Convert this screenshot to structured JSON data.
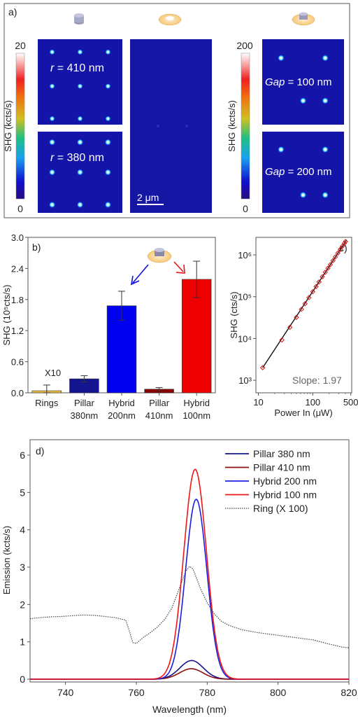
{
  "panel_a": {
    "label": "a)",
    "left_colorbar": {
      "max": "20",
      "min": "0",
      "label": "SHG (kcts/s)"
    },
    "right_colorbar": {
      "max": "200",
      "min": "0",
      "label": "SHG (kcts/s)"
    },
    "maps": [
      {
        "var": "r",
        "text": " = 410 nm",
        "spots": [
          [
            0.17,
            0.15
          ],
          [
            0.5,
            0.15
          ],
          [
            0.83,
            0.15
          ],
          [
            0.17,
            0.55
          ],
          [
            0.5,
            0.55
          ],
          [
            0.83,
            0.55
          ],
          [
            0.17,
            0.93
          ],
          [
            0.5,
            0.93
          ],
          [
            0.83,
            0.93
          ]
        ],
        "intensity": 0.45
      },
      {
        "var": "r",
        "text": " = 380 nm",
        "spots": [
          [
            0.17,
            0.13
          ],
          [
            0.5,
            0.13
          ],
          [
            0.83,
            0.13
          ],
          [
            0.17,
            0.5
          ],
          [
            0.5,
            0.5
          ],
          [
            0.83,
            0.5
          ],
          [
            0.17,
            0.9
          ],
          [
            0.5,
            0.9
          ],
          [
            0.83,
            0.9
          ]
        ],
        "intensity": 0.7
      },
      {
        "var": "Gap",
        "text": " = 100 nm",
        "spots": [
          [
            0.23,
            0.22
          ],
          [
            0.77,
            0.22
          ],
          [
            0.5,
            0.72
          ],
          [
            0.77,
            0.72
          ]
        ],
        "intensity": 0.75
      },
      {
        "var": "Gap",
        "text": " = 200 nm",
        "spots": [
          [
            0.23,
            0.22
          ],
          [
            0.77,
            0.22
          ],
          [
            0.5,
            0.78
          ],
          [
            0.77,
            0.78
          ]
        ],
        "intensity": 0.75
      }
    ],
    "scale_bar": "2 μm"
  },
  "chart_data": [
    {
      "type": "bar",
      "panel": "b)",
      "categories": [
        [
          "Rings"
        ],
        [
          "Pillar",
          "380nm"
        ],
        [
          "Hybrid",
          "200nm"
        ],
        [
          "Pillar",
          "410nm"
        ],
        [
          "Hybrid",
          "100nm"
        ]
      ],
      "values": [
        0.04,
        0.27,
        1.68,
        0.07,
        2.19
      ],
      "errors": [
        0.11,
        0.06,
        0.28,
        0.03,
        0.35
      ],
      "colors": [
        "#f0c040",
        "#141490",
        "#0000ee",
        "#8b0000",
        "#ee0000"
      ],
      "ylabel": "SHG (10⁵cts/s)",
      "yticks": [
        "0.0",
        "0.6",
        "1.2",
        "1.8",
        "2.4",
        "3.0"
      ],
      "ylim": [
        0,
        3.0
      ],
      "annotation": "X10"
    },
    {
      "type": "scatter",
      "panel": "c)",
      "scale": "log-log",
      "x": [
        12,
        27,
        38,
        50,
        62,
        72,
        85,
        100,
        115,
        130,
        150,
        170,
        190,
        210,
        235,
        260,
        290,
        320,
        350,
        380,
        400
      ],
      "y": [
        2000,
        9200,
        18500,
        32000,
        50000,
        68000,
        95000,
        132000,
        175000,
        225000,
        300000,
        385000,
        480000,
        585000,
        730000,
        895000,
        1110000,
        1350000,
        1610000,
        1890000,
        2090000
      ],
      "fit_line": {
        "x": [
          12,
          420
        ],
        "y": [
          2000,
          2300000
        ]
      },
      "xlabel": "Power In (μW)",
      "ylabel": "SHG (cts/s)",
      "xticks": [
        "10",
        "100",
        "500"
      ],
      "yticks": [
        "10³",
        "10⁴",
        "10⁵",
        "10⁶"
      ],
      "annotation": "Slope: 1.97"
    },
    {
      "type": "line",
      "panel": "d)",
      "xlabel": "Wavelength (nm)",
      "ylabel": "Emission (kcts/s)",
      "xlim": [
        730,
        820
      ],
      "ylim": [
        0,
        6.3
      ],
      "xticks": [
        "740",
        "760",
        "780",
        "800",
        "820"
      ],
      "yticks": [
        "0",
        "1",
        "2",
        "3",
        "4",
        "5",
        "6"
      ],
      "series": [
        {
          "name": "Pillar 380 nm",
          "color": "#141490",
          "style": "solid",
          "peak_x": 775.6,
          "peak_y": 0.5,
          "sigma": 3.3
        },
        {
          "name": "Pillar 410 nm",
          "color": "#8b1010",
          "style": "solid",
          "peak_x": 775.5,
          "peak_y": 0.28,
          "sigma": 3.3
        },
        {
          "name": "Hybrid 200 nm",
          "color": "#1c1ce0",
          "style": "solid",
          "peak_x": 776.9,
          "peak_y": 4.82,
          "sigma": 3.0
        },
        {
          "name": "Hybrid 100 nm",
          "color": "#ee1515",
          "style": "solid",
          "peak_x": 776.6,
          "peak_y": 5.62,
          "sigma": 3.2
        },
        {
          "name": "Ring (X 100)",
          "color": "#444444",
          "style": "dotted",
          "x": [
            730,
            733,
            736,
            739,
            742,
            745,
            748,
            751,
            754,
            757,
            758,
            759,
            760,
            762,
            764,
            766,
            768,
            770,
            772,
            774,
            775,
            776,
            778,
            780,
            782,
            784,
            786,
            788,
            790,
            794,
            798,
            802,
            806,
            810,
            814,
            818,
            820
          ],
          "y": [
            1.62,
            1.65,
            1.67,
            1.68,
            1.7,
            1.72,
            1.71,
            1.68,
            1.65,
            1.58,
            1.3,
            0.98,
            0.96,
            1.12,
            1.25,
            1.4,
            1.6,
            1.9,
            2.4,
            2.9,
            3.02,
            2.95,
            2.45,
            2.05,
            1.75,
            1.55,
            1.45,
            1.38,
            1.32,
            1.25,
            1.2,
            1.15,
            1.1,
            1.05,
            0.95,
            0.86,
            0.84
          ]
        }
      ]
    }
  ]
}
